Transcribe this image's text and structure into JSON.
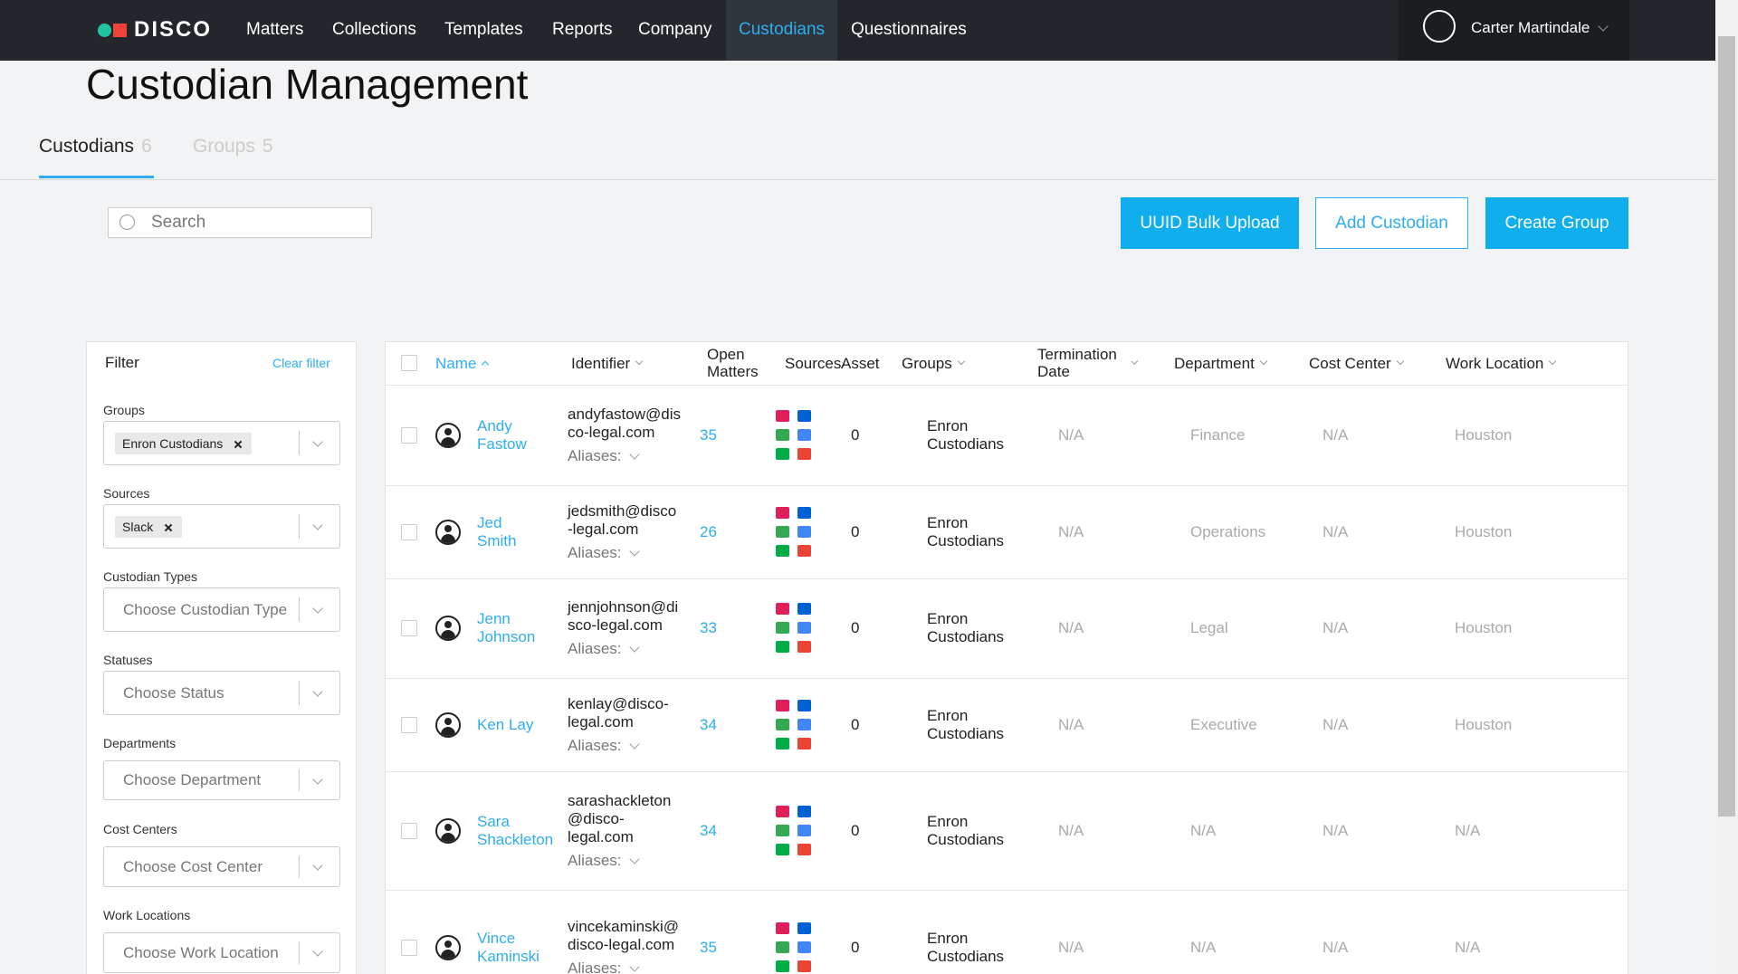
{
  "nav": {
    "logo": "DISCO",
    "items": [
      "Matters",
      "Collections",
      "Templates",
      "Reports",
      "Company",
      "Custodians",
      "Questionnaires"
    ],
    "user": "Carter Martindale"
  },
  "page_title": "Custodian Management",
  "tabs": [
    {
      "label": "Custodians",
      "count": 6
    },
    {
      "label": "Groups",
      "count": 5
    }
  ],
  "search_placeholder": "Search",
  "buttons": [
    "UUID Bulk Upload",
    "Add Custodian",
    "Create Group"
  ],
  "filter": {
    "title": "Filter",
    "clear": "Clear filter",
    "fields": [
      {
        "label": "Groups",
        "chip": "Enron Custodians"
      },
      {
        "label": "Sources",
        "chip": "Slack"
      },
      {
        "label": "Custodian Types",
        "placeholder": "Choose Custodian Type"
      },
      {
        "label": "Statuses",
        "placeholder": "Choose Status"
      },
      {
        "label": "Departments",
        "placeholder": "Choose Department"
      },
      {
        "label": "Cost Centers",
        "placeholder": "Choose Cost Center"
      },
      {
        "label": "Work Locations",
        "placeholder": "Choose Work Location"
      }
    ]
  },
  "table": {
    "columns": [
      "Name",
      "Identifier",
      "Open Matters",
      "Sources",
      "Asset",
      "Groups",
      "Termination Date",
      "Department",
      "Cost Center",
      "Work Location"
    ],
    "aliases_label": "Aliases:",
    "rows": [
      {
        "name": "Andy Fastow",
        "identifier": "andyfastow@disco-legal.com",
        "open_matters": 35,
        "assets": 0,
        "group": "Enron Custodians",
        "termination": "N/A",
        "department": "Finance",
        "cost_center": "N/A",
        "location": "Houston"
      },
      {
        "name": "Jed Smith",
        "identifier": "jedsmith@disco-legal.com",
        "open_matters": 26,
        "assets": 0,
        "group": "Enron Custodians",
        "termination": "N/A",
        "department": "Operations",
        "cost_center": "N/A",
        "location": "Houston"
      },
      {
        "name": "Jenn Johnson",
        "identifier": "jennjohnson@disco-legal.com",
        "open_matters": 33,
        "assets": 0,
        "group": "Enron Custodians",
        "termination": "N/A",
        "department": "Legal",
        "cost_center": "N/A",
        "location": "Houston"
      },
      {
        "name": "Ken Lay",
        "identifier": "kenlay@disco-legal.com",
        "open_matters": 34,
        "assets": 0,
        "group": "Enron Custodians",
        "termination": "N/A",
        "department": "Executive",
        "cost_center": "N/A",
        "location": "Houston"
      },
      {
        "name": "Sara Shackleton",
        "identifier": "sarashackleton@disco-legal.com",
        "open_matters": 34,
        "assets": 0,
        "group": "Enron Custodians",
        "termination": "N/A",
        "department": "N/A",
        "cost_center": "N/A",
        "location": "N/A"
      },
      {
        "name": "Vince Kaminski",
        "identifier": "vincekaminski@disco-legal.com",
        "open_matters": 35,
        "assets": 0,
        "group": "Enron Custodians",
        "termination": "N/A",
        "department": "N/A",
        "cost_center": "N/A",
        "location": "N/A"
      }
    ]
  }
}
